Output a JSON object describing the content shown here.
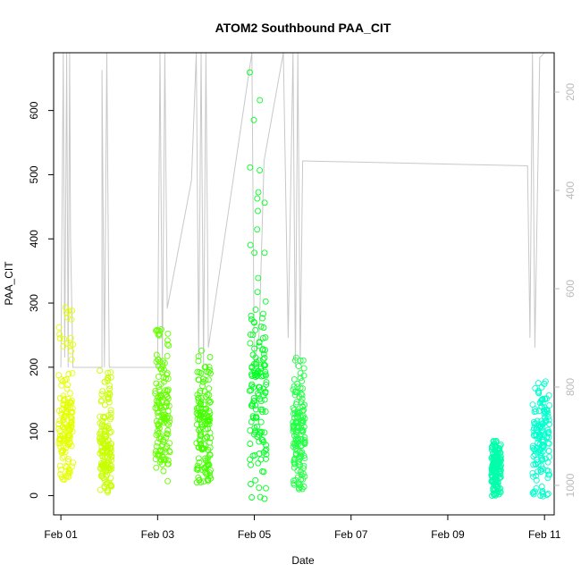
{
  "chart_data": {
    "type": "scatter",
    "title": "ATOM2 Southbound PAA_CIT",
    "xlabel": "Date",
    "ylabel": "PAA_CIT",
    "xlim": [
      -0.15,
      10.2
    ],
    "ylim": [
      -30,
      690
    ],
    "x_ticks": [
      {
        "value": 0,
        "label": "Feb 01"
      },
      {
        "value": 2,
        "label": "Feb 03"
      },
      {
        "value": 4,
        "label": "Feb 05"
      },
      {
        "value": 6,
        "label": "Feb 07"
      },
      {
        "value": 8,
        "label": "Feb 09"
      },
      {
        "value": 10,
        "label": "Feb 11"
      }
    ],
    "y_ticks": [
      0,
      100,
      200,
      300,
      400,
      500,
      600
    ],
    "right_axis": {
      "ticks": [
        200,
        400,
        600,
        800,
        1000
      ],
      "reversed": true,
      "range": [
        120,
        1060
      ],
      "color": "#bbbbbb"
    },
    "series": [
      {
        "x_range": [
          -0.05,
          0.25
        ],
        "y_min": 25,
        "y_max": 300,
        "y_center": 100,
        "color": "#e4ff00"
      },
      {
        "x_range": [
          0.8,
          1.05
        ],
        "y_min": 5,
        "y_max": 215,
        "y_center": 70,
        "color": "#c8ff00"
      },
      {
        "x_range": [
          1.95,
          2.25
        ],
        "y_min": 22,
        "y_max": 262,
        "y_center": 120,
        "color": "#66ff00"
      },
      {
        "x_range": [
          2.8,
          3.1
        ],
        "y_min": 20,
        "y_max": 232,
        "y_center": 110,
        "color": "#44ff00"
      },
      {
        "x_range": [
          3.9,
          4.25
        ],
        "y_min": -5,
        "y_max": 660,
        "y_center": 140,
        "color": "#00ff22"
      },
      {
        "x_range": [
          4.8,
          5.05
        ],
        "y_min": 10,
        "y_max": 215,
        "y_center": 100,
        "color": "#22ff44"
      },
      {
        "x_range": [
          8.9,
          9.1
        ],
        "y_min": 0,
        "y_max": 85,
        "y_center": 45,
        "color": "#00ffaa"
      },
      {
        "x_range": [
          9.75,
          10.1
        ],
        "y_min": -5,
        "y_max": 178,
        "y_center": 85,
        "color": "#00ffcc"
      }
    ],
    "depth_trace": {
      "color": "#c8c8c8",
      "points": [
        [
          0.0,
          760
        ],
        [
          0.05,
          120
        ],
        [
          0.08,
          740
        ],
        [
          0.12,
          120
        ],
        [
          0.15,
          760
        ],
        [
          0.18,
          120
        ],
        [
          0.2,
          500
        ],
        [
          0.25,
          760
        ],
        [
          0.85,
          760
        ],
        [
          0.85,
          155
        ],
        [
          0.9,
          760
        ],
        [
          0.95,
          120
        ],
        [
          1.0,
          760
        ],
        [
          2.0,
          760
        ],
        [
          2.05,
          120
        ],
        [
          2.1,
          760
        ],
        [
          2.15,
          120
        ],
        [
          2.2,
          640
        ],
        [
          2.7,
          380
        ],
        [
          2.8,
          120
        ],
        [
          2.85,
          740
        ],
        [
          2.9,
          120
        ],
        [
          2.95,
          760
        ],
        [
          3.0,
          120
        ],
        [
          3.05,
          720
        ],
        [
          3.95,
          120
        ],
        [
          4.0,
          760
        ],
        [
          4.1,
          690
        ],
        [
          4.2,
          340
        ],
        [
          4.6,
          120
        ],
        [
          4.7,
          700
        ],
        [
          4.8,
          120
        ],
        [
          4.85,
          760
        ],
        [
          4.9,
          120
        ],
        [
          4.95,
          755
        ],
        [
          5.0,
          340
        ],
        [
          9.65,
          350
        ],
        [
          9.7,
          700
        ],
        [
          9.75,
          120
        ],
        [
          9.8,
          720
        ],
        [
          9.9,
          130
        ],
        [
          10.0,
          120
        ]
      ]
    }
  }
}
